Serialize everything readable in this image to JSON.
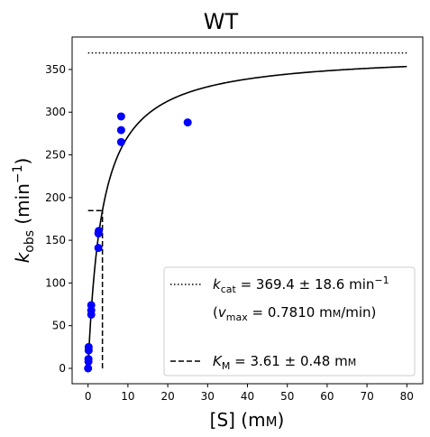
{
  "chart_data": {
    "type": "scatter",
    "title": "WT",
    "xlabel_main": "[S] (m",
    "xlabel_unit_small": "M",
    "xlabel_close": ")",
    "ylabel_k": "k",
    "ylabel_sub": "obs",
    "ylabel_unit": " (min",
    "ylabel_exp": "−1",
    "ylabel_close": ")",
    "xlim": [
      -4,
      84
    ],
    "ylim": [
      -18,
      388
    ],
    "xticks": [
      0,
      10,
      20,
      30,
      40,
      50,
      60,
      70,
      80
    ],
    "yticks": [
      0,
      50,
      100,
      150,
      200,
      250,
      300,
      350
    ],
    "points_color": "#0000ff",
    "points": [
      {
        "x": 0.0,
        "y": 0
      },
      {
        "x": 0.1,
        "y": 8
      },
      {
        "x": 0.1,
        "y": 11
      },
      {
        "x": 0.15,
        "y": 21
      },
      {
        "x": 0.15,
        "y": 25
      },
      {
        "x": 0.8,
        "y": 63
      },
      {
        "x": 0.8,
        "y": 68
      },
      {
        "x": 0.8,
        "y": 74
      },
      {
        "x": 2.6,
        "y": 141
      },
      {
        "x": 2.6,
        "y": 158
      },
      {
        "x": 2.7,
        "y": 161
      },
      {
        "x": 8.3,
        "y": 265
      },
      {
        "x": 8.3,
        "y": 279
      },
      {
        "x": 8.3,
        "y": 295
      },
      {
        "x": 25.0,
        "y": 288
      }
    ],
    "fit": {
      "kcat": 369.4,
      "KM": 3.61,
      "x_range": [
        0,
        80
      ]
    },
    "kcat_line": {
      "y": 369.4,
      "x_range": [
        0,
        80
      ]
    },
    "km_lines": {
      "x": 3.61,
      "y_half": 184.7
    },
    "legend": {
      "position": "lower-right",
      "kcat_k": "k",
      "kcat_sub": "cat",
      "kcat_text": " = 369.4 ± 18.6 min",
      "kcat_exp": "−1",
      "vmax_open": "(",
      "vmax_v": "v",
      "vmax_sub": "max",
      "vmax_text": " = 0.7810 m",
      "vmax_unit_small": "M",
      "vmax_close": "/min)",
      "km_k": "K",
      "km_sub": "M",
      "km_text": " = 3.61 ± 0.48 m",
      "km_unit_small": "M"
    }
  }
}
